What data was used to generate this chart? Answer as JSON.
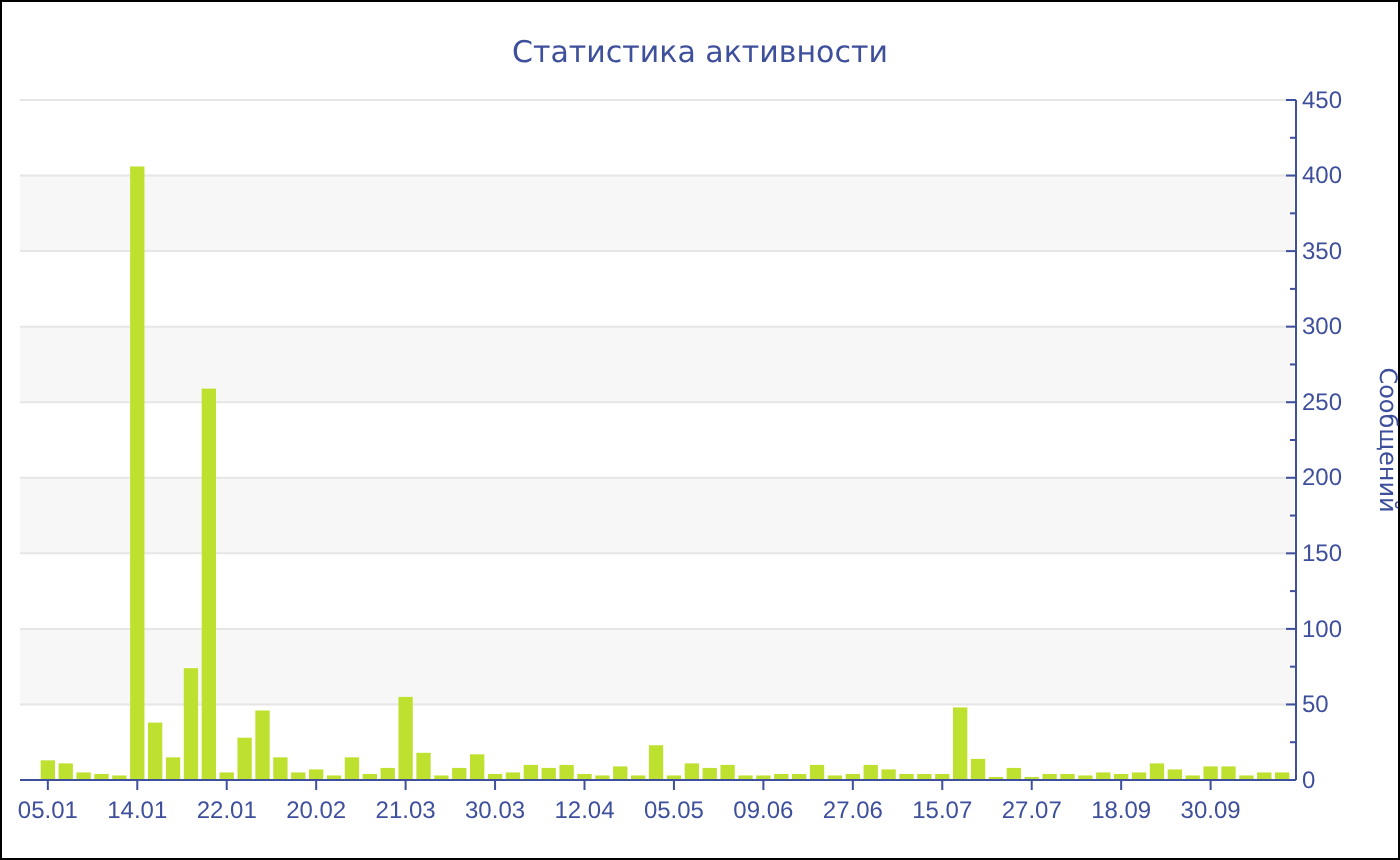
{
  "chart_data": {
    "type": "bar",
    "title": "Статистика активности",
    "ylabel": "Сообщений",
    "categories": [
      "05.01",
      null,
      null,
      null,
      null,
      "14.01",
      null,
      null,
      null,
      null,
      "22.01",
      null,
      null,
      null,
      null,
      "20.02",
      null,
      null,
      null,
      null,
      "21.03",
      null,
      null,
      null,
      null,
      "30.03",
      null,
      null,
      null,
      null,
      "12.04",
      null,
      null,
      null,
      null,
      "05.05",
      null,
      null,
      null,
      null,
      "09.06",
      null,
      null,
      null,
      null,
      "27.06",
      null,
      null,
      null,
      null,
      "15.07",
      null,
      null,
      null,
      null,
      "27.07",
      null,
      null,
      null,
      null,
      "18.09",
      null,
      null,
      null,
      null,
      "30.09",
      null,
      null,
      null,
      null
    ],
    "values": [
      13,
      11,
      5,
      4,
      3,
      406,
      38,
      15,
      74,
      259,
      5,
      28,
      46,
      15,
      5,
      7,
      3,
      15,
      4,
      8,
      55,
      18,
      3,
      8,
      17,
      4,
      5,
      10,
      8,
      10,
      4,
      3,
      9,
      3,
      23,
      3,
      11,
      8,
      10,
      3,
      3,
      4,
      4,
      10,
      3,
      4,
      10,
      7,
      4,
      4,
      4,
      48,
      14,
      2,
      8,
      2,
      4,
      4,
      3,
      5,
      4,
      5,
      11,
      7,
      3,
      9,
      9,
      3,
      5,
      5
    ],
    "color": "#bde12e",
    "ylim": [
      0,
      450
    ],
    "yticks": [
      0,
      {
        "value": 25,
        "label": null
      },
      50,
      {
        "value": 75,
        "label": null
      },
      100,
      {
        "value": 125,
        "label": null
      },
      150,
      {
        "value": 175,
        "label": null
      },
      200,
      {
        "value": 225,
        "label": null
      },
      250,
      {
        "value": 275,
        "label": null
      },
      300,
      {
        "value": 325,
        "label": null
      },
      350,
      {
        "value": 375,
        "label": null
      },
      400,
      {
        "value": 425,
        "label": null
      },
      450
    ],
    "grid": "y"
  }
}
